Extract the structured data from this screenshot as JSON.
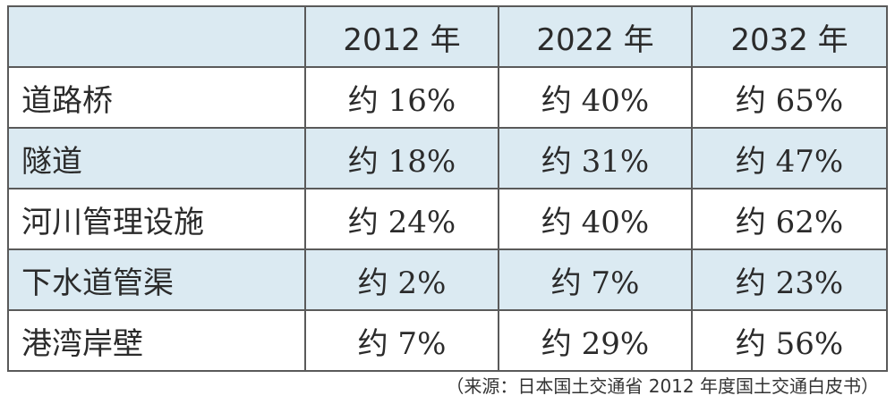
{
  "chart_data": {
    "type": "table",
    "columns": [
      "2012 年",
      "2022 年",
      "2032 年"
    ],
    "rows": [
      {
        "label": "道路桥",
        "values": [
          "约 16%",
          "约 40%",
          "约 65%"
        ]
      },
      {
        "label": "隧道",
        "values": [
          "约 18%",
          "约 31%",
          "约 47%"
        ]
      },
      {
        "label": "河川管理设施",
        "values": [
          "约 24%",
          "约 40%",
          "约 62%"
        ]
      },
      {
        "label": "下水道管渠",
        "values": [
          "约 2%",
          "约 7%",
          "约 23%"
        ]
      },
      {
        "label": "港湾岸壁",
        "values": [
          "约 7%",
          "约 29%",
          "约 56%"
        ]
      }
    ],
    "shaded_rows": [
      0,
      2,
      4
    ]
  },
  "source": "（来源：日本国土交通省 2012 年度国土交通白皮书）"
}
